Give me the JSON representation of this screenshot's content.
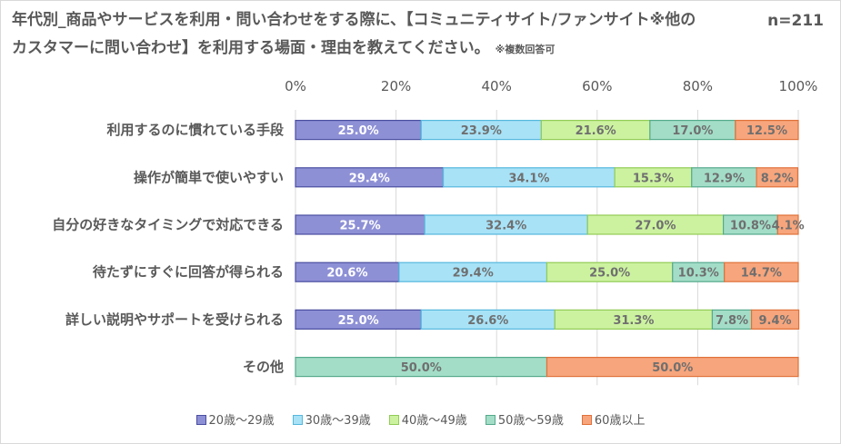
{
  "header": {
    "title": "年代別_商品やサービスを利用・問い合わせをする際に、【コミュニティサイト/ファンサイト※他のカスタマーに問い合わせ】を利用する場面・理由を教えてください。",
    "note": "※複数回答可",
    "n_label": "n=211"
  },
  "chart_data": {
    "type": "bar",
    "orientation": "horizontal",
    "stacked": "percent",
    "xlim": [
      0,
      100
    ],
    "x_ticks": [
      "0%",
      "20%",
      "40%",
      "60%",
      "80%",
      "100%"
    ],
    "categories": [
      "利用するのに慣れている手段",
      "操作が簡単で使いやすい",
      "自分の好きなタイミングで対応できる",
      "待たずにすぐに回答が得られる",
      "詳しい説明やサポートを受けられる",
      "その他"
    ],
    "series": [
      {
        "name": "20歳～29歳",
        "color": "#8e90d6",
        "border": "#4a4ea0",
        "values": [
          25.0,
          29.4,
          25.7,
          20.6,
          25.0,
          0
        ]
      },
      {
        "name": "30歳～39歳",
        "color": "#a8e2f7",
        "border": "#55b8dd",
        "values": [
          23.9,
          34.1,
          32.4,
          29.4,
          26.6,
          0
        ]
      },
      {
        "name": "40歳～49歳",
        "color": "#ccf2a0",
        "border": "#92cc55",
        "values": [
          21.6,
          15.3,
          27.0,
          25.0,
          31.3,
          0
        ]
      },
      {
        "name": "50歳～59歳",
        "color": "#a3ddc8",
        "border": "#55aa8c",
        "values": [
          17.0,
          12.9,
          10.8,
          10.3,
          7.8,
          50.0
        ]
      },
      {
        "name": "60歳以上",
        "color": "#f7a57c",
        "border": "#e0713a",
        "values": [
          12.5,
          8.2,
          4.1,
          14.7,
          9.4,
          50.0
        ]
      }
    ],
    "data_labels": [
      [
        "25.0%",
        "23.9%",
        "21.6%",
        "17.0%",
        "12.5%"
      ],
      [
        "29.4%",
        "34.1%",
        "15.3%",
        "12.9%",
        "8.2%"
      ],
      [
        "25.7%",
        "32.4%",
        "27.0%",
        "10.8%",
        "4.1%"
      ],
      [
        "20.6%",
        "29.4%",
        "25.0%",
        "10.3%",
        "14.7%"
      ],
      [
        "25.0%",
        "26.6%",
        "31.3%",
        "7.8%",
        "9.4%"
      ],
      [
        "",
        "",
        "",
        "50.0%",
        "50.0%"
      ]
    ],
    "label_color": "#6f6f6f",
    "first_series_label_color": "#ffffff",
    "grid": true,
    "legend_position": "bottom"
  }
}
